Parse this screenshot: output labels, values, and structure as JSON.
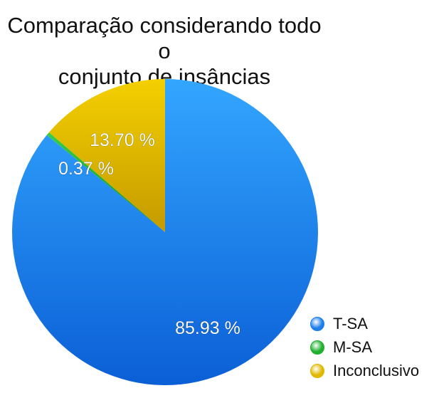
{
  "chart_data": {
    "type": "pie",
    "title": [
      "Comparação considerando todo o",
      "conjunto de insâncias"
    ],
    "categories": [
      "T-SA",
      "M-SA",
      "Inconclusivo"
    ],
    "values": [
      85.93,
      0.37,
      13.7
    ],
    "value_labels": [
      "85.93 %",
      "0.37 %",
      "13.70 %"
    ],
    "colors": [
      "#1e7fe8",
      "#1fb02e",
      "#e0b800"
    ],
    "start_angle_deg": 0,
    "direction": "clockwise",
    "legend": {
      "position": "bottom-right",
      "entries": [
        "T-SA",
        "M-SA",
        "Inconclusivo"
      ]
    }
  }
}
